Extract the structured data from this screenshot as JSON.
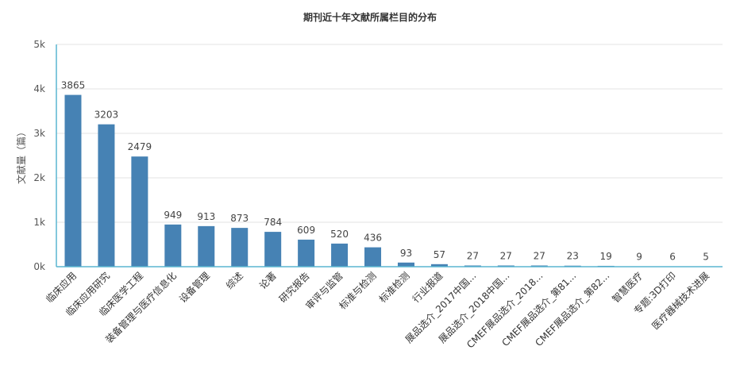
{
  "chart_data": {
    "type": "bar",
    "title": "期刊近十年文献所属栏目的分布",
    "xlabel": "",
    "ylabel": "文献量（篇）",
    "ylim": [
      0,
      5000
    ],
    "y_ticks": [
      "0k",
      "1k",
      "2k",
      "3k",
      "4k",
      "5k"
    ],
    "grid": true,
    "bar_color": "#4682B4",
    "categories": [
      "临床应用",
      "临床应用研究",
      "临床医学工程",
      "装备管理与医疗信息化",
      "设备管理",
      "综述",
      "论著",
      "研究报告",
      "审评与监管",
      "标准与检测",
      "标准检测",
      "行业报道",
      "展品选介_2017中国...",
      "展品选介_2018中国...",
      "CMEF展品选介_2018...",
      "CMEF展品选介_第81...",
      "CMEF展品选介_第82...",
      "智慧医疗",
      "专题:3D打印",
      "医疗器械技术进展"
    ],
    "values": [
      3865,
      3203,
      2479,
      949,
      913,
      873,
      784,
      609,
      520,
      436,
      93,
      57,
      27,
      27,
      27,
      23,
      19,
      9,
      6,
      5
    ]
  }
}
